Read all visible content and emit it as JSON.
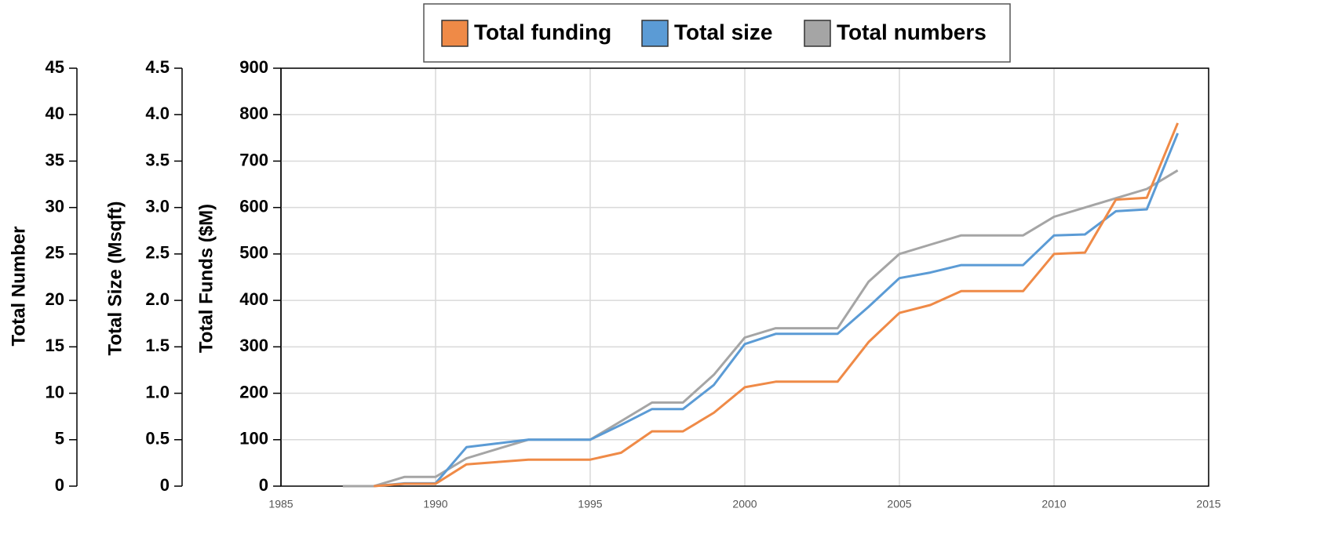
{
  "chart_data": {
    "type": "line",
    "x": [
      1987,
      1988,
      1989,
      1990,
      1991,
      1992,
      1993,
      1994,
      1995,
      1996,
      1997,
      1998,
      1999,
      2000,
      2001,
      2002,
      2003,
      2004,
      2005,
      2006,
      2007,
      2008,
      2009,
      2010,
      2011,
      2012,
      2013,
      2014
    ],
    "xlim": [
      1985,
      2015
    ],
    "xticks": [
      1985,
      1990,
      1995,
      2000,
      2005,
      2010,
      2015
    ],
    "ylabel": "Total Funds ($M)",
    "ylim": [
      0,
      900
    ],
    "yticks": [
      0,
      100,
      200,
      300,
      400,
      500,
      600,
      700,
      800,
      900
    ],
    "y2label": "Total Size (Msqft)",
    "y2lim": [
      0,
      4.5
    ],
    "y2ticks": [
      0,
      0.5,
      {
        "value": 1,
        "label": "1.0"
      },
      1.5,
      {
        "value": 2,
        "label": "2.0"
      },
      2.5,
      {
        "value": 3,
        "label": "3.0"
      },
      3.5,
      {
        "value": 4,
        "label": "4.0"
      },
      4.5
    ],
    "y3label": "Total Number",
    "y3lim": [
      0,
      45
    ],
    "y3ticks": [
      0,
      5,
      10,
      15,
      20,
      25,
      30,
      35,
      40,
      45
    ],
    "grid": true,
    "legend": "top",
    "series": [
      {
        "name": "Total funding",
        "color": "#ef8a47",
        "axis": "y",
        "values": [
          null,
          0,
          5,
          5,
          47,
          52,
          57,
          57,
          57,
          72,
          118,
          118,
          158,
          213,
          225,
          225,
          225,
          310,
          373,
          390,
          420,
          420,
          420,
          500,
          503,
          617,
          621,
          782
        ]
      },
      {
        "name": "Total size",
        "color": "#5b9bd5",
        "axis": "y2",
        "values": [
          null,
          0,
          0.03,
          0.03,
          0.42,
          0.46,
          0.5,
          0.5,
          0.5,
          0.66,
          0.83,
          0.83,
          1.09,
          1.53,
          1.64,
          1.64,
          1.64,
          1.93,
          2.24,
          2.3,
          2.38,
          2.38,
          2.38,
          2.7,
          2.71,
          2.96,
          2.98,
          3.8
        ]
      },
      {
        "name": "Total numbers",
        "color": "#a5a5a5",
        "axis": "y3",
        "values": [
          0,
          0,
          1,
          1,
          3,
          4,
          5,
          5,
          5,
          7,
          9,
          9,
          12,
          16,
          17,
          17,
          17,
          22,
          25,
          26,
          27,
          27,
          27,
          29,
          30,
          31,
          32,
          34
        ]
      }
    ]
  }
}
